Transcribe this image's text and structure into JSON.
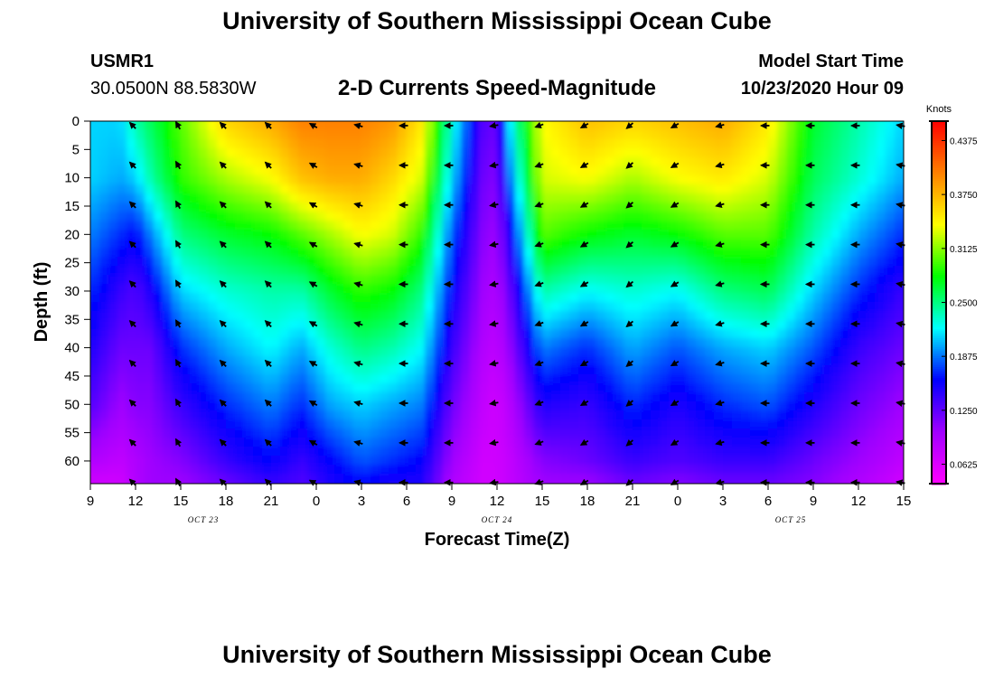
{
  "page": {
    "title_top": "University of Southern Mississippi Ocean Cube",
    "title_bottom": "University of Southern Mississippi Ocean Cube",
    "station": "USMR1",
    "coords": "30.0500N 88.5830W",
    "plot_title": "2-D Currents Speed-Magnitude",
    "model_start_label": "Model Start Time",
    "model_start_value": "10/23/2020 Hour 09"
  },
  "chart_data": {
    "type": "heatmap",
    "title": "2-D Currents Speed-Magnitude",
    "xlabel": "Forecast Time(Z)",
    "ylabel": "Depth (ft)",
    "x_tick_labels": [
      "9",
      "12",
      "15",
      "18",
      "21",
      "0",
      "3",
      "6",
      "9",
      "12",
      "15",
      "18",
      "21",
      "0",
      "3",
      "6",
      "9",
      "12",
      "15"
    ],
    "x_hours": [
      0,
      3,
      6,
      9,
      12,
      15,
      18,
      21,
      24,
      27,
      30,
      33,
      36,
      39,
      42,
      45,
      48,
      51,
      54
    ],
    "date_labels": [
      {
        "text": "OCT 23",
        "hour": 7.5
      },
      {
        "text": "OCT 24",
        "hour": 27
      },
      {
        "text": "OCT 25",
        "hour": 46.5
      }
    ],
    "y_ticks": [
      0,
      5,
      10,
      15,
      20,
      25,
      30,
      35,
      40,
      45,
      50,
      55,
      60
    ],
    "y_range": [
      0,
      64
    ],
    "colorbar": {
      "unit": "Knots",
      "tick_labels": [
        "0.4375",
        "0.3750",
        "0.3125",
        "0.2500",
        "0.1875",
        "0.1250",
        "0.0625"
      ],
      "tick_values": [
        0.4375,
        0.375,
        0.3125,
        0.25,
        0.1875,
        0.125,
        0.0625
      ],
      "min": 0.04,
      "max": 0.46,
      "colors": [
        "#ff00ff",
        "#a000ff",
        "#0000ff",
        "#00ffff",
        "#00ff00",
        "#ffff00",
        "#ff8000",
        "#ff0000"
      ]
    },
    "grid_hours": [
      0,
      2,
      3,
      4,
      6,
      9,
      12,
      14,
      16,
      18,
      20,
      22,
      24,
      26,
      27,
      28,
      30,
      33,
      36,
      39,
      42,
      45,
      48,
      51,
      54
    ],
    "grid_depths": [
      0,
      10,
      20,
      30,
      40,
      50,
      60,
      64
    ],
    "speed_knots": [
      [
        0.21,
        0.21,
        0.19,
        0.17,
        0.15,
        0.13,
        0.09,
        0.07
      ],
      [
        0.21,
        0.2,
        0.17,
        0.14,
        0.12,
        0.1,
        0.08,
        0.07
      ],
      [
        0.24,
        0.21,
        0.16,
        0.13,
        0.12,
        0.11,
        0.09,
        0.09
      ],
      [
        0.26,
        0.24,
        0.19,
        0.15,
        0.12,
        0.11,
        0.1,
        0.1
      ],
      [
        0.3,
        0.29,
        0.25,
        0.21,
        0.17,
        0.14,
        0.11,
        0.1
      ],
      [
        0.36,
        0.32,
        0.27,
        0.23,
        0.2,
        0.17,
        0.14,
        0.12
      ],
      [
        0.38,
        0.34,
        0.28,
        0.24,
        0.22,
        0.19,
        0.16,
        0.14
      ],
      [
        0.4,
        0.37,
        0.3,
        0.24,
        0.2,
        0.17,
        0.14,
        0.13
      ],
      [
        0.4,
        0.38,
        0.32,
        0.27,
        0.23,
        0.2,
        0.16,
        0.15
      ],
      [
        0.4,
        0.38,
        0.34,
        0.29,
        0.25,
        0.21,
        0.18,
        0.16
      ],
      [
        0.39,
        0.36,
        0.33,
        0.28,
        0.24,
        0.2,
        0.17,
        0.15
      ],
      [
        0.35,
        0.33,
        0.29,
        0.25,
        0.22,
        0.19,
        0.16,
        0.15
      ],
      [
        0.23,
        0.21,
        0.18,
        0.16,
        0.14,
        0.12,
        0.1,
        0.09
      ],
      [
        0.13,
        0.12,
        0.11,
        0.1,
        0.09,
        0.08,
        0.07,
        0.07
      ],
      [
        0.12,
        0.11,
        0.1,
        0.09,
        0.08,
        0.07,
        0.07,
        0.07
      ],
      [
        0.23,
        0.2,
        0.16,
        0.13,
        0.11,
        0.09,
        0.08,
        0.08
      ],
      [
        0.34,
        0.33,
        0.3,
        0.24,
        0.19,
        0.15,
        0.11,
        0.1
      ],
      [
        0.37,
        0.34,
        0.28,
        0.22,
        0.17,
        0.14,
        0.12,
        0.1
      ],
      [
        0.36,
        0.32,
        0.27,
        0.23,
        0.2,
        0.17,
        0.14,
        0.12
      ],
      [
        0.37,
        0.34,
        0.28,
        0.22,
        0.18,
        0.15,
        0.13,
        0.11
      ],
      [
        0.38,
        0.35,
        0.3,
        0.25,
        0.2,
        0.17,
        0.14,
        0.12
      ],
      [
        0.35,
        0.33,
        0.3,
        0.26,
        0.21,
        0.18,
        0.14,
        0.12
      ],
      [
        0.27,
        0.26,
        0.24,
        0.21,
        0.18,
        0.15,
        0.12,
        0.11
      ],
      [
        0.24,
        0.23,
        0.2,
        0.17,
        0.14,
        0.12,
        0.1,
        0.09
      ],
      [
        0.21,
        0.2,
        0.17,
        0.14,
        0.12,
        0.1,
        0.08,
        0.07
      ]
    ],
    "vectors": {
      "hours": [
        3,
        6,
        9,
        12,
        15,
        18,
        21,
        24,
        27,
        30,
        33,
        36,
        39,
        42,
        45,
        48,
        51,
        54
      ],
      "depths": [
        0,
        7,
        14,
        21,
        28,
        35,
        42,
        49,
        56,
        63
      ],
      "direction_deg": [
        225,
        240,
        225,
        225,
        210,
        195,
        180,
        180,
        170,
        160,
        150,
        140,
        150,
        165,
        180,
        180,
        180,
        190
      ]
    }
  }
}
